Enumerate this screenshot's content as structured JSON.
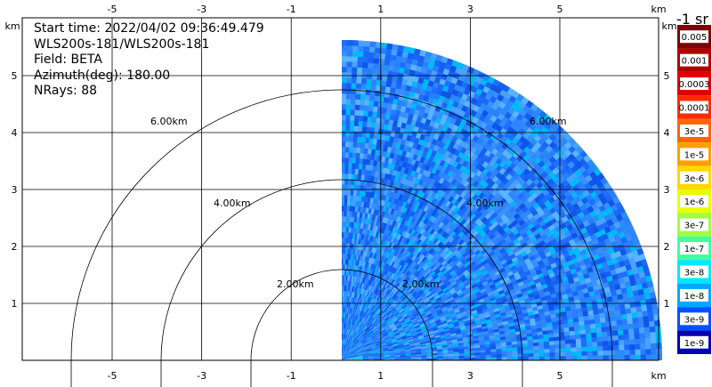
{
  "info": {
    "start_time": "Start time: 2022/04/02 09:36:49.479",
    "instrument": "WLS200s-181/WLS200s-181",
    "field": "Field: BETA",
    "azimuth": "Azimuth(deg): 180.00",
    "nrays": "NRays: 88"
  },
  "axes": {
    "x_unit": "km",
    "y_unit": "km",
    "x_ticks": [
      "-5",
      "-3",
      "-1",
      "1",
      "3",
      "5"
    ],
    "y_ticks": [
      "1",
      "2",
      "3",
      "4",
      "5"
    ]
  },
  "colorbar": {
    "title": "-1 sr",
    "labels": [
      "0.005",
      "0.001",
      "0.0003",
      "0.0001",
      "3e-5",
      "1e-5",
      "3e-6",
      "1e-6",
      "3e-7",
      "1e-7",
      "3e-8",
      "1e-8",
      "3e-9",
      "1e-9"
    ],
    "colors": [
      "#7f0000",
      "#b00000",
      "#e00000",
      "#ff2a00",
      "#ff6400",
      "#ffa000",
      "#ffd800",
      "#e8ff00",
      "#a0ff40",
      "#40ffa0",
      "#00e8ff",
      "#00a8ff",
      "#0050ff",
      "#0000b0"
    ]
  },
  "chart_data": {
    "type": "heatmap",
    "title": "",
    "xlabel": "km",
    "ylabel": "km",
    "xlim": [
      -6,
      6.2
    ],
    "ylim": [
      0,
      6
    ],
    "range_rings_km": [
      2,
      4,
      6
    ],
    "range_ring_labels": [
      "2.00km",
      "4.00km",
      "6.00km"
    ],
    "azimuth_deg": 180.0,
    "field": "BETA",
    "nrays": 88,
    "sweep_x_range_km": [
      1.4,
      6.0
    ],
    "sweep_max_range_km": 6.0,
    "value_range": [
      "1e-9",
      "0.005"
    ]
  }
}
